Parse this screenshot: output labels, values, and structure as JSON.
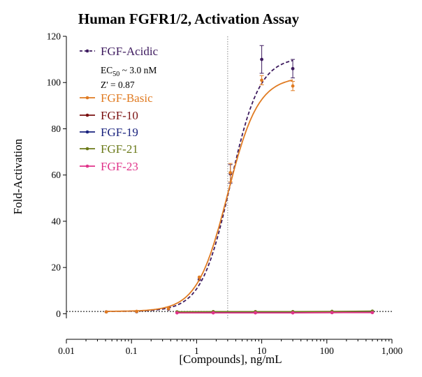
{
  "chart_data": {
    "type": "line",
    "title": "Human FGFR1/2, Activation Assay",
    "xlabel": "[Compounds], ng/mL",
    "ylabel": "Fold-Activation",
    "xscale": "log",
    "xlim": [
      0.01,
      1000
    ],
    "ylim": [
      -2,
      120
    ],
    "xticks": [
      0.01,
      0.1,
      1,
      10,
      100,
      1000
    ],
    "xtick_labels": [
      "0.01",
      "0.1",
      "1",
      "10",
      "100",
      "1,000"
    ],
    "yticks": [
      0,
      20,
      40,
      60,
      80,
      100,
      120
    ],
    "ytick_labels": [
      "0",
      "20",
      "40",
      "60",
      "80",
      "100",
      "120"
    ],
    "reference_lines": {
      "ec50_x": 3.0,
      "baseline_y": 1
    },
    "legend_position": "top-left",
    "annotations": [
      {
        "series": "FGF-Acidic",
        "text_main": "EC",
        "text_sub": "50",
        "text_rest": " ~ 3.0 nM"
      },
      {
        "series": "FGF-Acidic",
        "text_main": "Z' = 0.87",
        "text_sub": "",
        "text_rest": ""
      }
    ],
    "series": [
      {
        "name": "FGF-Acidic",
        "color": "#3d1a5e",
        "style": "dashed",
        "x": [
          0.041,
          0.12,
          0.37,
          1.1,
          3.3,
          10,
          30
        ],
        "y": [
          0.8,
          0.9,
          2.0,
          14.8,
          60.5,
          110,
          106
        ],
        "err": [
          0,
          0,
          0,
          0,
          4,
          6,
          4
        ],
        "fit": {
          "bottom": 1,
          "top": 111,
          "ec50": 3.3,
          "hill": 1.95
        }
      },
      {
        "name": "FGF-Basic",
        "color": "#e07b22",
        "style": "solid",
        "x": [
          0.041,
          0.12,
          0.37,
          1.1,
          3.3,
          10,
          30
        ],
        "y": [
          0.8,
          1.0,
          2.2,
          15.8,
          61,
          101,
          98.5
        ],
        "err": [
          0,
          0,
          0,
          0,
          4,
          2,
          2
        ],
        "fit": {
          "bottom": 1,
          "top": 102.5,
          "ec50": 3.0,
          "hill": 1.85
        }
      },
      {
        "name": "FGF-10",
        "color": "#7a1010",
        "style": "solid",
        "x": [
          0.5,
          1.8,
          8,
          30,
          120,
          500
        ],
        "y": [
          0.5,
          0.5,
          0.5,
          0.5,
          0.5,
          0.6
        ]
      },
      {
        "name": "FGF-19",
        "color": "#1a237e",
        "style": "solid",
        "x": [
          0.5,
          1.8,
          8,
          30,
          120,
          500
        ],
        "y": [
          0.6,
          0.6,
          0.6,
          0.6,
          0.7,
          0.7
        ]
      },
      {
        "name": "FGF-21",
        "color": "#6b7a1a",
        "style": "solid",
        "x": [
          0.5,
          1.8,
          8,
          30,
          120,
          500
        ],
        "y": [
          0.8,
          0.9,
          0.9,
          0.9,
          1.0,
          1.1
        ]
      },
      {
        "name": "FGF-23",
        "color": "#e0338a",
        "style": "solid",
        "x": [
          0.5,
          1.8,
          8,
          30,
          120,
          500
        ],
        "y": [
          0.4,
          0.4,
          0.4,
          0.4,
          0.5,
          0.5
        ]
      }
    ]
  }
}
